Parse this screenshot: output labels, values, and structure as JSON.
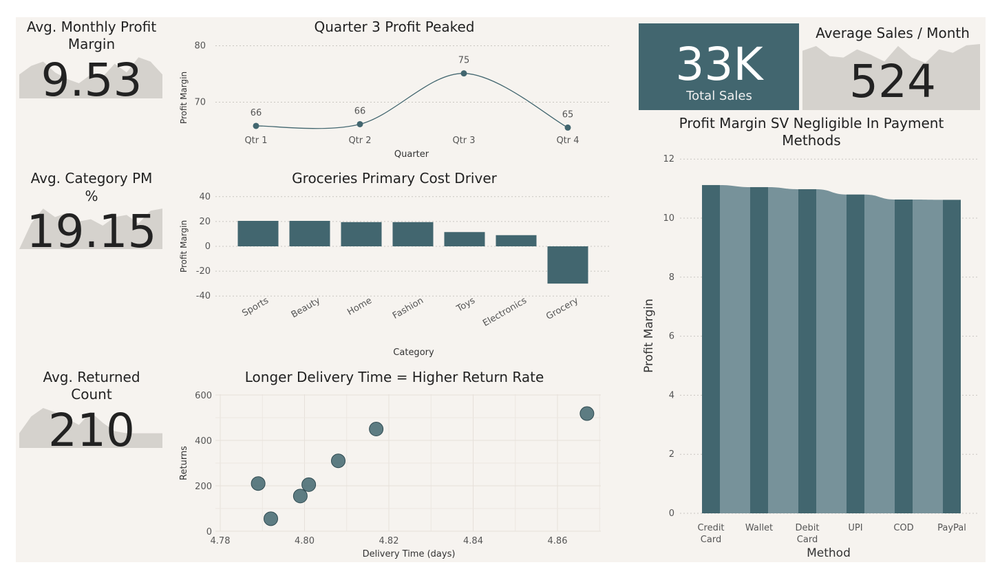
{
  "kpis": {
    "monthly_pm": {
      "title_l1": "Avg. Monthly Profit",
      "title_l2": "Margin",
      "value": "9.53",
      "spark": [
        0.55,
        0.75,
        0.85,
        0.6,
        0.45,
        0.35,
        0.55,
        0.5,
        0.8,
        0.6,
        0.95,
        0.85,
        0.55
      ]
    },
    "category_pm": {
      "title_l1": "Avg. Category PM",
      "title_l2": "%",
      "value": "19.15",
      "spark": [
        0.0,
        0.6,
        0.95,
        0.75,
        0.85,
        0.65,
        0.7,
        0.55,
        0.75,
        0.8,
        0.6,
        0.9,
        0.95
      ]
    },
    "returned": {
      "title_l1": "Avg. Returned",
      "title_l2": "Count",
      "value": "210",
      "spark": [
        0.35,
        0.75,
        0.95,
        0.85,
        0.7,
        0.55,
        0.85,
        0.6,
        0.4,
        0.35,
        0.35,
        0.35,
        0.35
      ]
    },
    "total_sales": {
      "value": "33K",
      "label": "Total Sales",
      "color": "#42666f"
    },
    "avg_sales": {
      "title": "Average Sales / Month",
      "value": "524",
      "spark": [
        0.88,
        0.95,
        0.8,
        0.78,
        0.9,
        0.82,
        0.72,
        0.95,
        0.78,
        0.7,
        0.9,
        0.85,
        0.96,
        0.98
      ]
    }
  },
  "chart_data": [
    {
      "id": "quarter_profit",
      "type": "line",
      "title": "Quarter 3 Profit Peaked",
      "xlabel": "Quarter",
      "ylabel": "Profit Margin",
      "categories": [
        "Qtr 1",
        "Qtr 2",
        "Qtr 3",
        "Qtr 4"
      ],
      "values": [
        65.8,
        66.1,
        75.1,
        65.5
      ],
      "labels": [
        "66",
        "66",
        "75",
        "65"
      ],
      "yticks": [
        70,
        80
      ],
      "ylim": [
        63,
        81
      ],
      "color": "#42666f"
    },
    {
      "id": "category_profit",
      "type": "bar",
      "title": "Groceries Primary Cost Driver",
      "xlabel": "Category",
      "ylabel": "Profit Margin",
      "categories": [
        "Sports",
        "Beauty",
        "Home",
        "Fashion",
        "Toys",
        "Electronics",
        "Grocery"
      ],
      "values": [
        20.5,
        20.5,
        19.5,
        19.5,
        11.5,
        9,
        -30
      ],
      "yticks": [
        -40,
        -20,
        0,
        20,
        40
      ],
      "ylim": [
        -40,
        40
      ],
      "color": "#42666f"
    },
    {
      "id": "delivery_returns",
      "type": "scatter",
      "title": "Longer Delivery Time = Higher Return Rate",
      "xlabel": "Delivery Time (days)",
      "ylabel": "Returns",
      "points": [
        [
          4.789,
          210
        ],
        [
          4.792,
          55
        ],
        [
          4.799,
          155
        ],
        [
          4.801,
          205
        ],
        [
          4.808,
          310
        ],
        [
          4.817,
          450
        ],
        [
          4.867,
          518
        ]
      ],
      "xticks": [
        4.78,
        4.8,
        4.82,
        4.84,
        4.86
      ],
      "xtick_labels": [
        "4.78",
        "4.80",
        "4.82",
        "4.84",
        "4.86"
      ],
      "yticks": [
        0,
        200,
        400,
        600
      ],
      "xlim": [
        4.78,
        4.87
      ],
      "ylim": [
        0,
        600
      ],
      "color": "#42666f"
    },
    {
      "id": "payment_margin",
      "type": "bar",
      "title_l1": "Profit Margin SV Negligible In Payment",
      "title_l2": "Methods",
      "xlabel": "Method",
      "ylabel": "Profit Margin",
      "categories": [
        [
          "Credit",
          "Card"
        ],
        [
          "Wallet"
        ],
        [
          "Debit",
          "Card"
        ],
        [
          "UPI"
        ],
        [
          "COD"
        ],
        [
          "PayPal"
        ]
      ],
      "values": [
        11.12,
        11.05,
        10.98,
        10.8,
        10.63,
        10.62
      ],
      "yticks": [
        0,
        2,
        4,
        6,
        8,
        10,
        12
      ],
      "ylim": [
        0,
        12
      ],
      "color": "#42666f",
      "fill_color": "#77929a"
    }
  ]
}
